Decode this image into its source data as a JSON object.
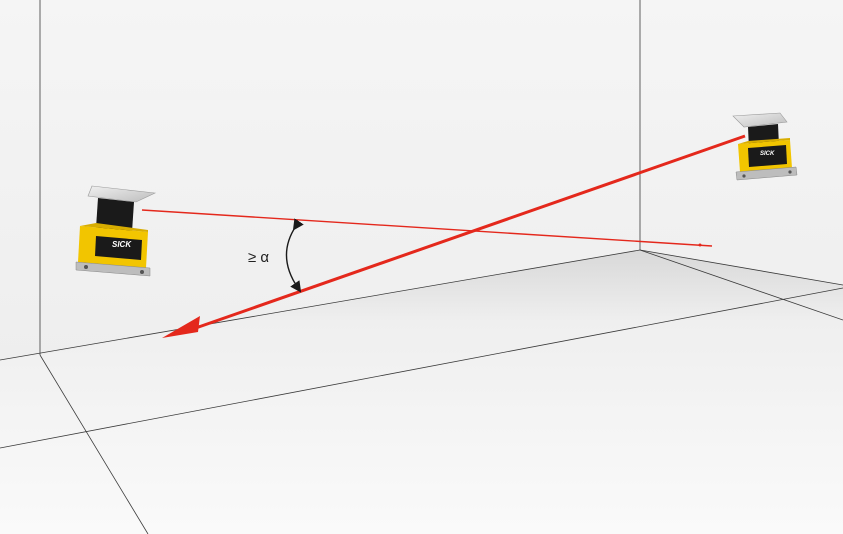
{
  "angle_label": "≥ α",
  "scanner_brand": "SICK",
  "colors": {
    "wall": "#f2f2f2",
    "floor": "#f7f7f7",
    "laser": "#e4281c",
    "scanner_body": "#f2c500",
    "scanner_dark": "#1a1a1a",
    "edge_lines": "#3a3a3a"
  },
  "objects": {
    "left_scanner": "safety-laser-scanner",
    "right_scanner": "safety-laser-scanner",
    "thin_beam": "laser-scan-plane-left",
    "thick_beam": "laser-scan-plane-right",
    "angle_arc": "double-headed-arrow-icon"
  }
}
